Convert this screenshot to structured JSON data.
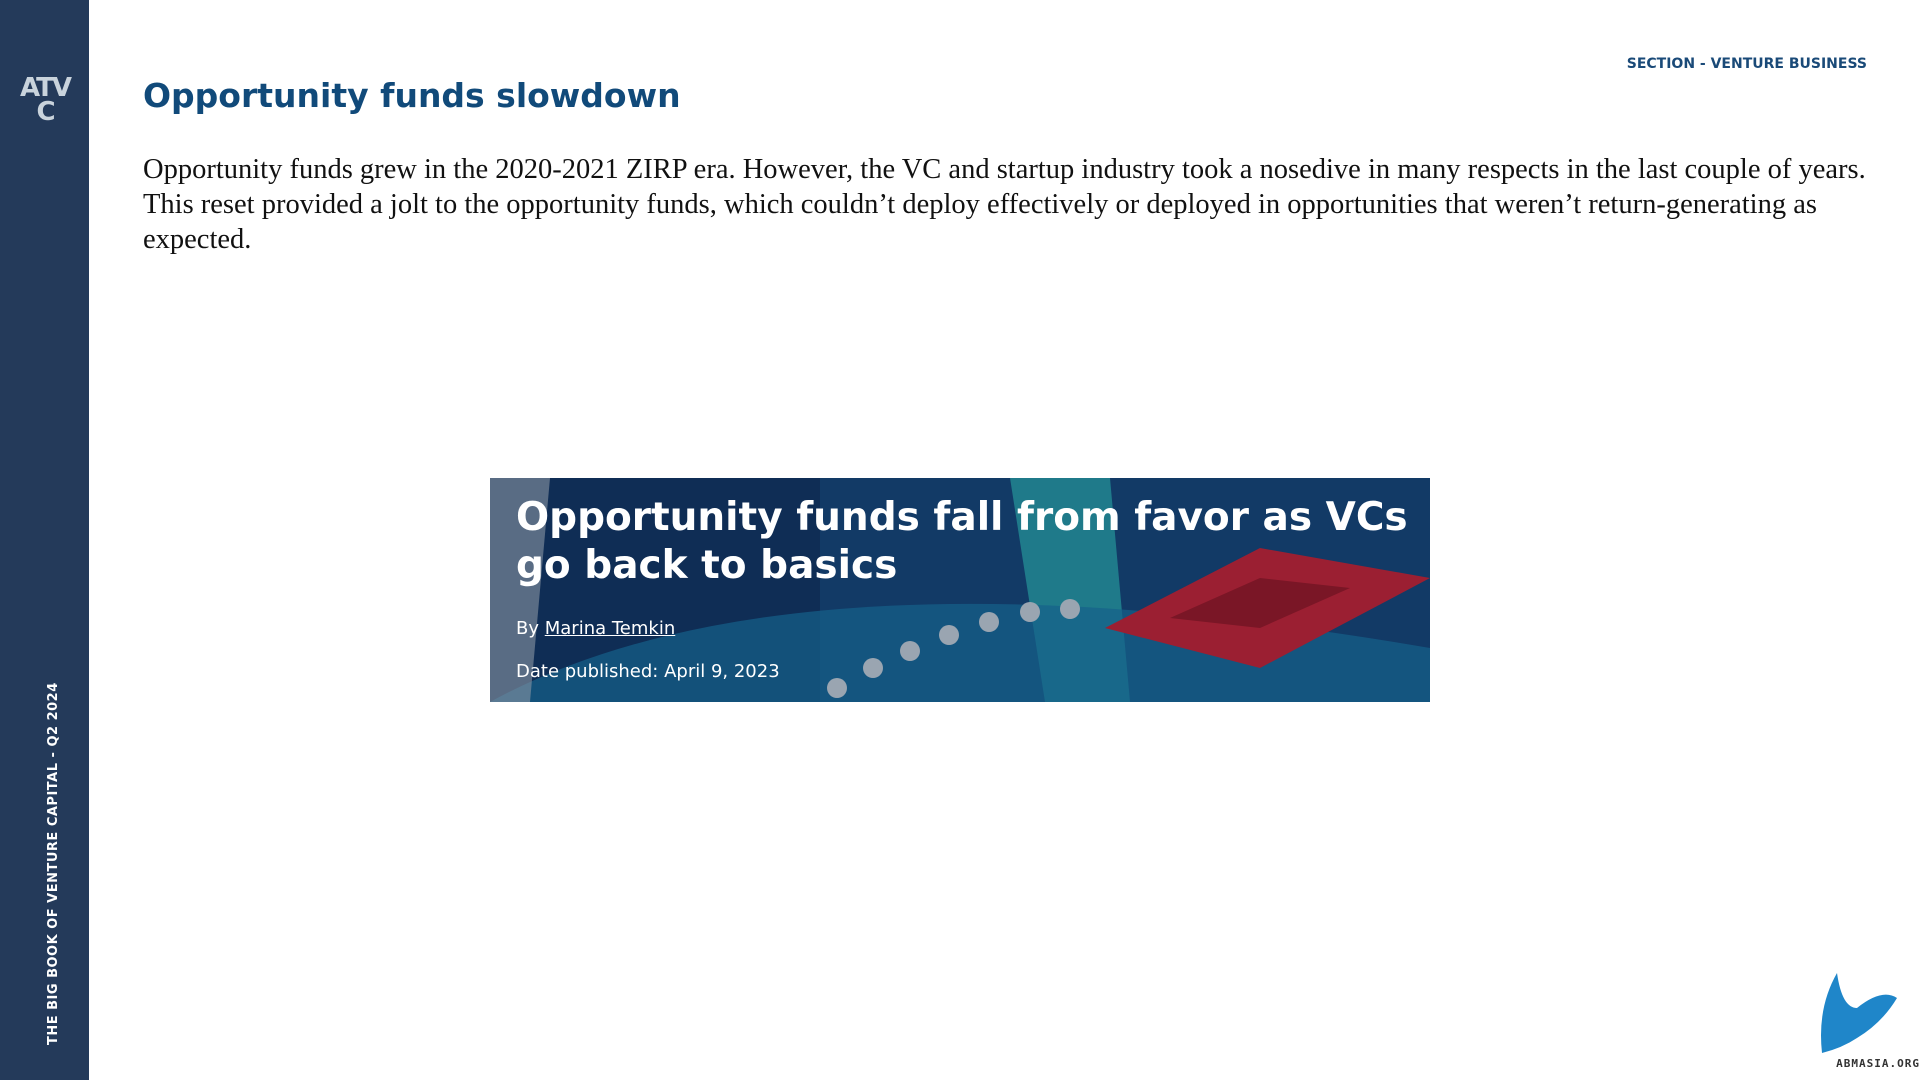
{
  "sidebar": {
    "logo": "ATVC",
    "vertical_text": "THE BIG BOOK OF VENTURE CAPITAL - Q2 2024"
  },
  "header": {
    "section": "SECTION - VENTURE BUSINESS",
    "title": "Opportunity funds slowdown"
  },
  "body": {
    "paragraph": "Opportunity funds grew in the 2020-2021 ZIRP era. However, the VC and startup industry took a nosedive in many respects in the last couple of years. This reset provided a jolt to the opportunity funds, which couldn’t deploy effectively or deployed in opportunities that weren’t return-generating as expected."
  },
  "article": {
    "headline": "Opportunity funds fall from favor as VCs go back to basics",
    "by": "By",
    "author": "Marina Temkin",
    "date": "Date published: April 9, 2023"
  },
  "watermark": {
    "text": "ABMASIA.ORG"
  }
}
